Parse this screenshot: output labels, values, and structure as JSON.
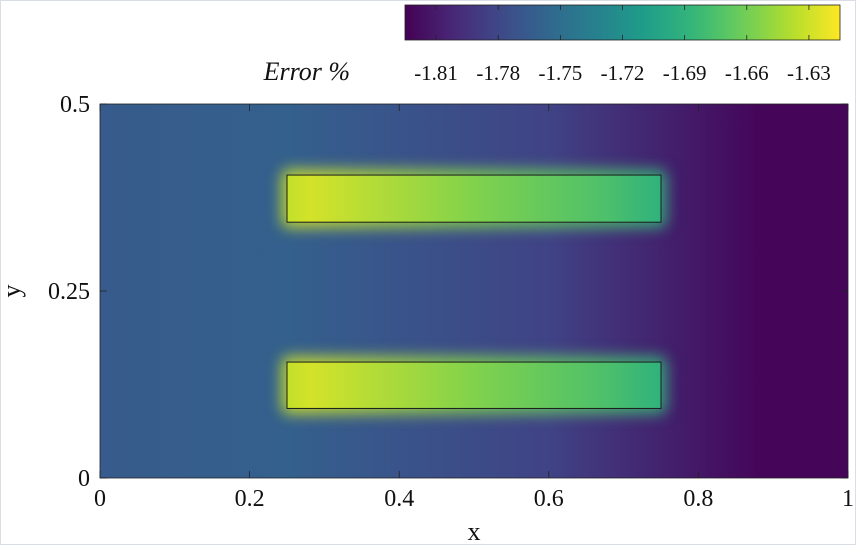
{
  "chart_data": {
    "type": "heatmap",
    "title": "",
    "xlabel": "x",
    "ylabel": "y",
    "xlim": [
      0,
      1
    ],
    "ylim": [
      0,
      0.5
    ],
    "x_ticks": [
      0,
      0.2,
      0.4,
      0.6,
      0.8,
      1
    ],
    "x_tick_labels": [
      "0",
      "0.2",
      "0.4",
      "0.6",
      "0.8",
      "1"
    ],
    "y_ticks": [
      0,
      0.25,
      0.5
    ],
    "y_tick_labels": [
      "0",
      "0.25",
      "0.5"
    ],
    "colorbar": {
      "label": "Error %",
      "placement": "top",
      "colormap": "viridis",
      "range": [
        -1.825,
        -1.615
      ],
      "ticks": [
        -1.81,
        -1.78,
        -1.75,
        -1.72,
        -1.69,
        -1.66,
        -1.63
      ],
      "tick_labels": [
        "-1.81",
        "-1.78",
        "-1.75",
        "-1.72",
        "-1.69",
        "-1.66",
        "-1.63"
      ]
    },
    "field": {
      "background_left": -1.765,
      "background_right": -1.822,
      "background_transition_x": [
        0.6,
        0.88
      ],
      "hot_peak": -1.628,
      "hot_peak_x": 0.28,
      "hot_tail": -1.69
    },
    "regions": [
      {
        "name": "upper bar",
        "x": [
          0.25,
          0.75
        ],
        "y": [
          0.342,
          0.405
        ]
      },
      {
        "name": "lower bar",
        "x": [
          0.25,
          0.75
        ],
        "y": [
          0.093,
          0.155
        ]
      }
    ],
    "grid": false,
    "legend": "none"
  }
}
